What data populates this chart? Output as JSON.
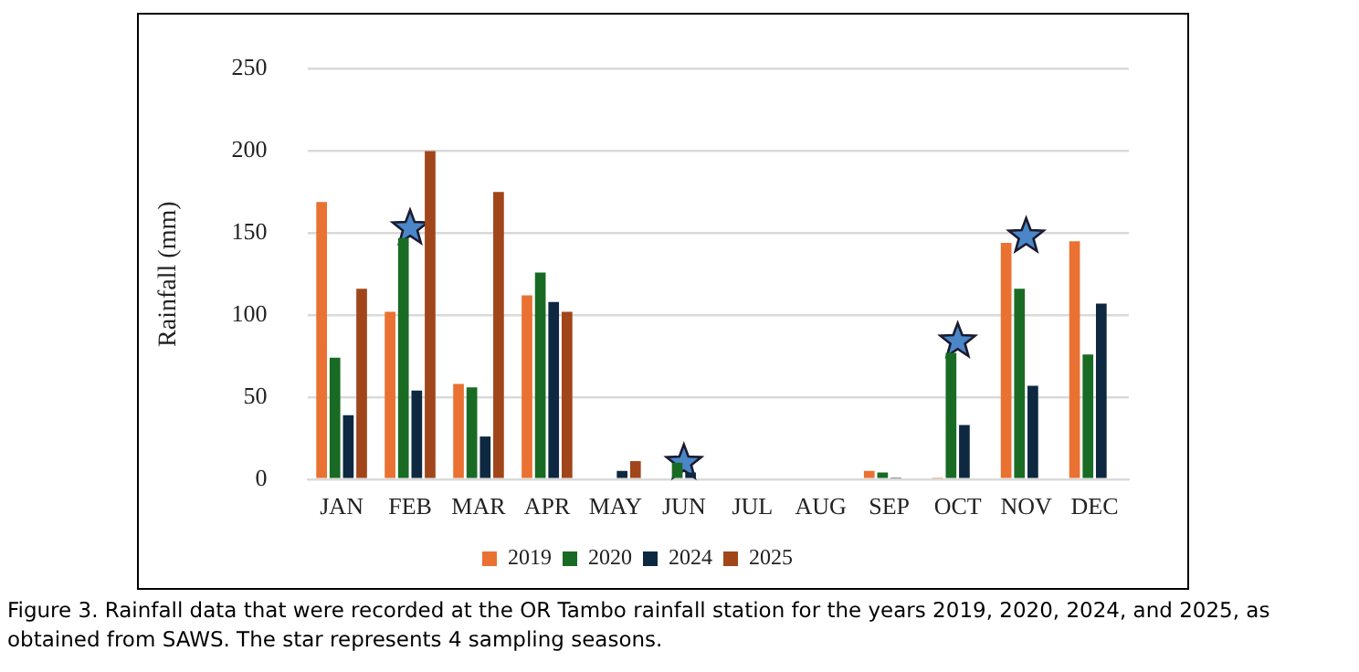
{
  "chart_data": {
    "type": "bar",
    "ylabel": "Rainfall (mm)",
    "categories": [
      "JAN",
      "FEB",
      "MAR",
      "APR",
      "MAY",
      "JUN",
      "JUL",
      "AUG",
      "SEP",
      "OCT",
      "NOV",
      "DEC"
    ],
    "series": [
      {
        "name": "2019",
        "color": "#e97132",
        "values": [
          169,
          102,
          58,
          112,
          null,
          null,
          null,
          null,
          5,
          1,
          144,
          145
        ]
      },
      {
        "name": "2020",
        "color": "#196b24",
        "values": [
          74,
          147,
          56,
          126,
          null,
          10,
          null,
          null,
          4,
          77,
          116,
          76
        ]
      },
      {
        "name": "2024",
        "color": "#0e2841",
        "values": [
          39,
          54,
          26,
          108,
          5,
          4,
          null,
          null,
          1,
          33,
          57,
          107
        ]
      },
      {
        "name": "2025",
        "color": "#a0461a",
        "values": [
          116,
          200,
          175,
          102,
          11,
          null,
          null,
          null,
          null,
          null,
          null,
          null
        ]
      },
      {
        "type": "scatter",
        "marker": "star",
        "color": "#4a86c8",
        "x": [
          "FEB",
          "JUN",
          "OCT",
          "NOV"
        ],
        "values": [
          153,
          10,
          84,
          148
        ]
      }
    ],
    "ylim": [
      0,
      250
    ],
    "yticks": [
      0,
      50,
      100,
      150,
      200,
      250
    ],
    "grid": "y",
    "legend": "bottom",
    "annotations": [
      "Figure 3. Rainfall data that were recorded at the OR Tambo rainfall station for the years 2019, 2020, 2024, and 2025, as obtained from SAWS. The star represents 4 sampling seasons."
    ]
  }
}
